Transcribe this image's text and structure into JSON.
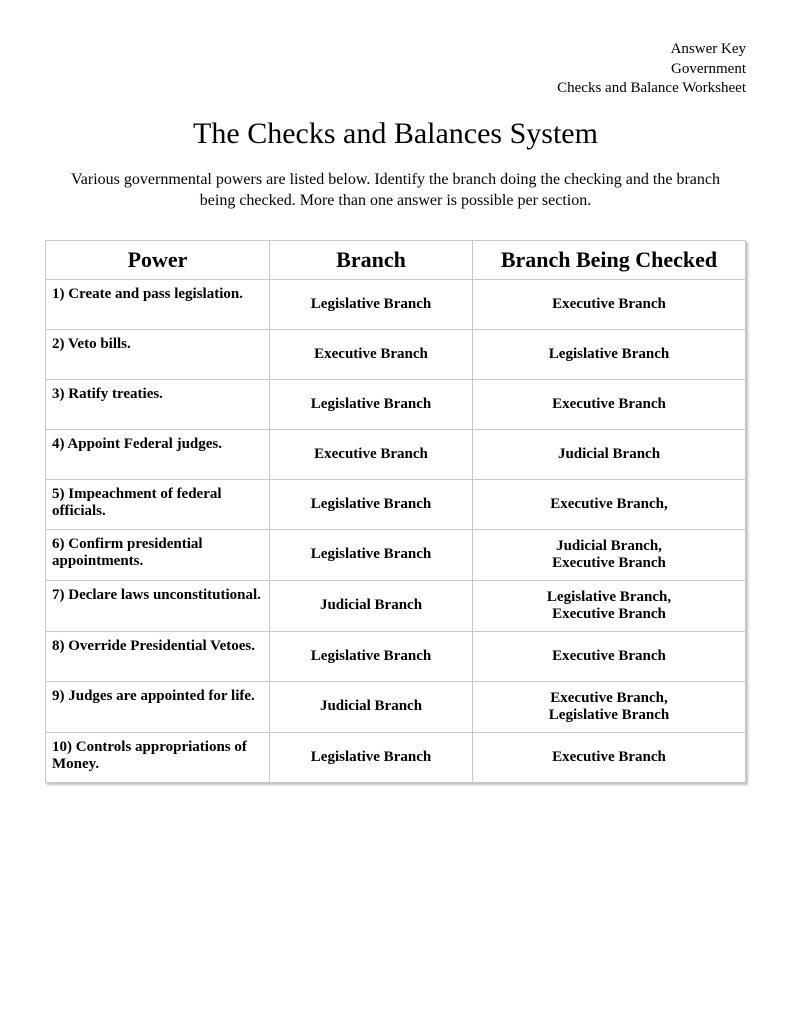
{
  "header": {
    "line1": "Answer Key",
    "line2": "Government",
    "line3": "Checks and Balance Worksheet"
  },
  "title": "The Checks and Balances System",
  "instructions": "Various governmental powers are listed below. Identify the branch doing the checking and the branch being checked. More than one answer is possible per section.",
  "table": {
    "columns": [
      "Power",
      "Branch",
      "Branch Being Checked"
    ],
    "rows": [
      {
        "power": "1) Create and pass legislation.",
        "branch": "Legislative Branch",
        "checked": "Executive Branch"
      },
      {
        "power": "2) Veto bills.",
        "branch": "Executive Branch",
        "checked": "Legislative Branch"
      },
      {
        "power": "3) Ratify treaties.",
        "branch": "Legislative Branch",
        "checked": "Executive Branch"
      },
      {
        "power": "4) Appoint Federal judges.",
        "branch": "Executive Branch",
        "checked": "Judicial Branch"
      },
      {
        "power": "5) Impeachment of federal officials.",
        "branch": "Legislative Branch",
        "checked": "Executive Branch,"
      },
      {
        "power": "6) Confirm presidential appointments.",
        "branch": "Legislative Branch",
        "checked": "Judicial Branch,\nExecutive Branch"
      },
      {
        "power": "7) Declare laws unconstitutional.",
        "branch": "Judicial Branch",
        "checked": "Legislative Branch,\nExecutive Branch"
      },
      {
        "power": "8) Override Presidential Vetoes.",
        "branch": "Legislative Branch",
        "checked": "Executive Branch"
      },
      {
        "power": "9) Judges are appointed for life.",
        "branch": "Judicial Branch",
        "checked": "Executive Branch,\nLegislative Branch"
      },
      {
        "power": "10) Controls appropriations of Money.",
        "branch": "Legislative Branch",
        "checked": "Executive Branch"
      }
    ]
  },
  "colors": {
    "text": "#000000",
    "background": "#ffffff",
    "border": "#c8c8c8",
    "shadow": "rgba(0,0,0,0.25)"
  }
}
